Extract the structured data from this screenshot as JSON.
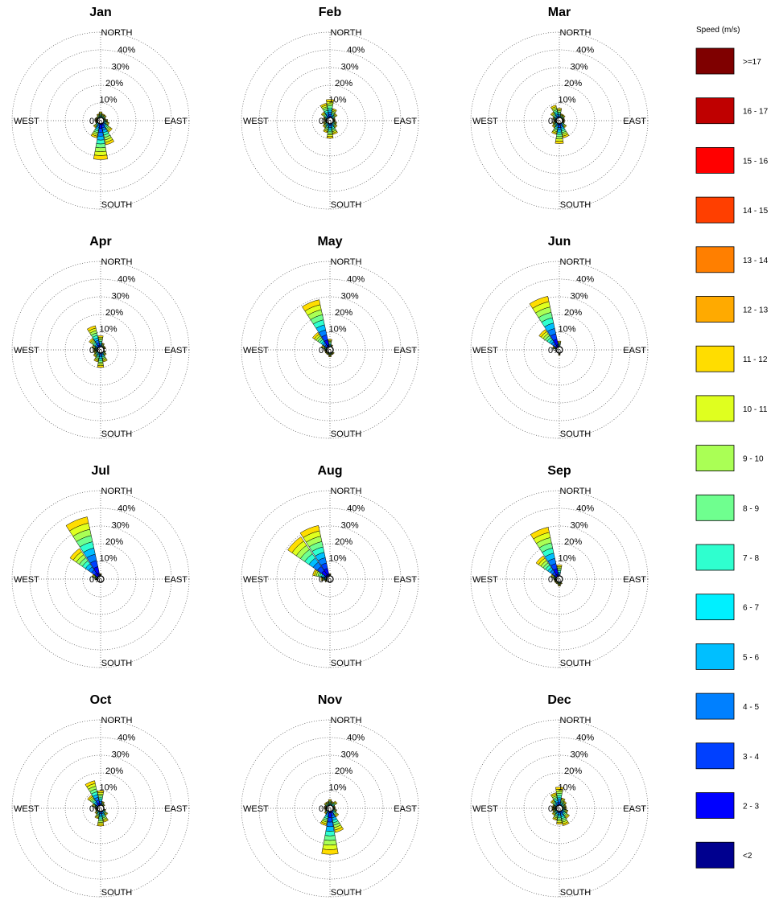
{
  "chart_data": {
    "type": "wind_rose",
    "grid": true,
    "legend": {
      "title": "Speed (m/s)",
      "placement": "right",
      "bins": [
        {
          "label": ">=17",
          "color": "#7f0000"
        },
        {
          "label": "16 - 17",
          "color": "#bf0000"
        },
        {
          "label": "15 - 16",
          "color": "#ff0000"
        },
        {
          "label": "14 - 15",
          "color": "#ff3f00"
        },
        {
          "label": "13 - 14",
          "color": "#ff7f00"
        },
        {
          "label": "12 - 13",
          "color": "#ffaa00"
        },
        {
          "label": "11 - 12",
          "color": "#ffdd00"
        },
        {
          "label": "10 - 11",
          "color": "#dfff1f"
        },
        {
          "label": "9 - 10",
          "color": "#aaff55"
        },
        {
          "label": "8 - 9",
          "color": "#6fff8f"
        },
        {
          "label": "7 - 8",
          "color": "#2fffcf"
        },
        {
          "label": "6 - 7",
          "color": "#00f0ff"
        },
        {
          "label": "5 - 6",
          "color": "#00bfff"
        },
        {
          "label": "4 - 5",
          "color": "#0080ff"
        },
        {
          "label": "3 - 4",
          "color": "#0040ff"
        },
        {
          "label": "2 - 3",
          "color": "#0000ff"
        },
        {
          "label": "<2",
          "color": "#00008f"
        }
      ]
    },
    "direction_labels": {
      "north": "NORTH",
      "south": "SOUTH",
      "east": "EAST",
      "west": "WEST"
    },
    "radial_ticks": [
      "0%",
      "10%",
      "20%",
      "30%",
      "40%"
    ],
    "radial_tick_values": [
      0,
      10,
      20,
      30,
      40
    ],
    "sector_directions_deg": [
      0,
      22.5,
      45,
      67.5,
      90,
      112.5,
      135,
      157.5,
      180,
      202.5,
      225,
      247.5,
      270,
      292.5,
      315,
      337.5
    ],
    "months": [
      {
        "title": "Jan",
        "frequencies": [
          5,
          4,
          4,
          3,
          4,
          5,
          8,
          14,
          22,
          10,
          5,
          3,
          3,
          3,
          3,
          4
        ]
      },
      {
        "title": "Feb",
        "frequencies": [
          12,
          7,
          5,
          3,
          3,
          4,
          5,
          8,
          10,
          7,
          5,
          4,
          3,
          4,
          6,
          10
        ]
      },
      {
        "title": "Mar",
        "frequencies": [
          7,
          4,
          4,
          3,
          3,
          3,
          5,
          10,
          13,
          8,
          5,
          4,
          3,
          4,
          6,
          9
        ]
      },
      {
        "title": "Apr",
        "frequencies": [
          8,
          4,
          3,
          3,
          2,
          3,
          4,
          7,
          10,
          7,
          5,
          4,
          4,
          5,
          8,
          14
        ]
      },
      {
        "title": "May",
        "frequencies": [
          6,
          3,
          2,
          2,
          2,
          2,
          3,
          3,
          4,
          3,
          3,
          3,
          3,
          5,
          12,
          29
        ]
      },
      {
        "title": "Jun",
        "frequencies": [
          5,
          2,
          2,
          1,
          1,
          1,
          2,
          2,
          3,
          2,
          2,
          2,
          2,
          4,
          14,
          31
        ]
      },
      {
        "title": "Jul",
        "frequencies": [
          3,
          1,
          1,
          1,
          1,
          1,
          1,
          2,
          2,
          2,
          2,
          2,
          3,
          5,
          21,
          36
        ]
      },
      {
        "title": "Aug",
        "frequencies": [
          3,
          1,
          1,
          1,
          1,
          1,
          1,
          1,
          2,
          2,
          2,
          3,
          5,
          10,
          29,
          31
        ]
      },
      {
        "title": "Sep",
        "frequencies": [
          8,
          2,
          2,
          1,
          1,
          1,
          2,
          3,
          4,
          3,
          3,
          3,
          3,
          5,
          16,
          30
        ]
      },
      {
        "title": "Oct",
        "frequencies": [
          10,
          4,
          3,
          2,
          2,
          3,
          5,
          8,
          10,
          6,
          4,
          3,
          3,
          5,
          9,
          16
        ]
      },
      {
        "title": "Nov",
        "frequencies": [
          5,
          4,
          5,
          3,
          3,
          4,
          6,
          14,
          26,
          10,
          4,
          3,
          3,
          3,
          4,
          4
        ]
      },
      {
        "title": "Dec",
        "frequencies": [
          12,
          6,
          5,
          4,
          4,
          5,
          7,
          10,
          9,
          7,
          5,
          4,
          4,
          4,
          6,
          9
        ]
      }
    ]
  }
}
